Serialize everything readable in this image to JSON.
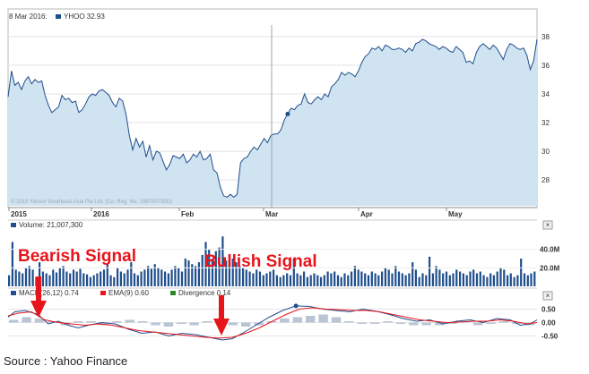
{
  "chart_data": [
    {
      "type": "area",
      "header": {
        "date": "8 Mar 2016:",
        "series_label": "YHOO 32.93"
      },
      "watermark": "© 2015 Yahoo! Southeast Asia Pte Ltd. (Co. Reg. No. 199700735D)",
      "x_ticks": [
        "2015",
        "2016",
        "Feb",
        "Mar",
        "Apr",
        "May"
      ],
      "y_ticks": [
        28,
        30,
        32,
        34,
        36,
        38
      ],
      "ylim": [
        26.2,
        38.8
      ],
      "series_color": "#1f4e8c",
      "fill_color": "#cfe3f1",
      "values": [
        33.8,
        35.6,
        34.6,
        34.8,
        34.3,
        34.9,
        35.2,
        34.7,
        35.0,
        34.8,
        34.9,
        33.9,
        33.2,
        32.7,
        32.9,
        33.1,
        33.9,
        33.6,
        33.7,
        33.4,
        33.5,
        32.7,
        32.9,
        33.3,
        33.8,
        34.0,
        33.9,
        34.2,
        34.3,
        34.1,
        33.9,
        33.4,
        33.1,
        33.7,
        33.5,
        32.6,
        31.1,
        30.1,
        30.9,
        30.3,
        30.7,
        29.6,
        30.4,
        29.4,
        30.0,
        29.9,
        29.3,
        28.7,
        29.1,
        29.7,
        29.6,
        29.5,
        29.8,
        29.2,
        29.4,
        29.8,
        29.6,
        30.0,
        29.4,
        29.5,
        29.8,
        28.7,
        28.5,
        27.5,
        26.9,
        26.8,
        27.0,
        26.8,
        27.0,
        29.2,
        29.5,
        29.6,
        30.0,
        30.3,
        30.1,
        30.5,
        30.9,
        30.6,
        31.1,
        31.2,
        31.2,
        31.5,
        32.2,
        32.6,
        33.0,
        32.9,
        33.2,
        33.3,
        34.0,
        33.4,
        33.3,
        33.6,
        33.8,
        33.6,
        34.0,
        33.8,
        34.5,
        34.7,
        35.0,
        35.5,
        35.3,
        35.5,
        35.4,
        35.2,
        35.6,
        36.2,
        36.6,
        36.8,
        37.2,
        37.1,
        37.3,
        37.0,
        37.4,
        37.3,
        37.1,
        37.1,
        37.2,
        37.1,
        36.9,
        37.2,
        37.0,
        37.5,
        37.6,
        37.8,
        37.7,
        37.5,
        37.4,
        37.3,
        37.1,
        37.3,
        37.2,
        37.0,
        36.9,
        37.3,
        37.1,
        36.9,
        36.2,
        36.3,
        36.1,
        36.9,
        37.3,
        37.5,
        37.3,
        37.1,
        37.4,
        37.2,
        36.8,
        36.4,
        37.1,
        37.5,
        37.4,
        37.2,
        37.1,
        37.2,
        36.7,
        35.7,
        36.3,
        37.8
      ]
    },
    {
      "type": "bar",
      "legend": "Volume: 21,007,300",
      "y_ticks": [
        "20.0M",
        "40.0M"
      ],
      "ylim": [
        0,
        60
      ],
      "color": "#1f4e8c",
      "values": [
        12,
        48,
        18,
        16,
        14,
        20,
        22,
        18,
        10,
        26,
        16,
        14,
        12,
        18,
        15,
        20,
        22,
        16,
        14,
        18,
        16,
        19,
        14,
        13,
        10,
        12,
        14,
        16,
        18,
        24,
        12,
        10,
        20,
        16,
        14,
        18,
        26,
        14,
        12,
        16,
        18,
        22,
        19,
        24,
        20,
        18,
        16,
        14,
        18,
        22,
        20,
        16,
        30,
        28,
        24,
        22,
        26,
        34,
        48,
        40,
        30,
        38,
        42,
        54,
        28,
        24,
        30,
        26,
        22,
        20,
        18,
        16,
        14,
        18,
        16,
        12,
        14,
        16,
        18,
        12,
        10,
        12,
        14,
        12,
        30,
        14,
        12,
        16,
        10,
        12,
        14,
        12,
        10,
        12,
        16,
        14,
        16,
        12,
        10,
        14,
        12,
        16,
        22,
        18,
        16,
        14,
        12,
        16,
        14,
        12,
        16,
        20,
        18,
        14,
        22,
        16,
        14,
        12,
        14,
        26,
        18,
        10,
        14,
        12,
        32,
        14,
        22,
        18,
        14,
        16,
        12,
        14,
        18,
        16,
        14,
        12,
        16,
        18,
        14,
        16,
        12,
        10,
        14,
        12,
        16,
        20,
        18,
        12,
        14,
        10,
        12,
        30,
        14,
        12,
        14,
        16
      ]
    },
    {
      "type": "line",
      "legend": [
        {
          "label": "MACD(26,12) 0.74",
          "color": "#1f4e8c",
          "swatch": "#1f4e8c"
        },
        {
          "label": "EMA(9) 0.60",
          "color": "#e8141b",
          "swatch": "#e8141b"
        },
        {
          "label": "Divergence 0.14",
          "color": "#2a8a2a",
          "swatch": "#2a8a2a"
        }
      ],
      "y_ticks": [
        0.5,
        0.0,
        -0.5
      ],
      "y_tick_labels": [
        "0.50",
        "0.00",
        "-0.50"
      ],
      "ylim": [
        -0.75,
        0.75
      ],
      "macd_points": [
        [
          0,
          0.2
        ],
        [
          2,
          0.4
        ],
        [
          5,
          0.45
        ],
        [
          9,
          0.3
        ],
        [
          12,
          -0.05
        ],
        [
          15,
          0.05
        ],
        [
          18,
          -0.1
        ],
        [
          21,
          -0.2
        ],
        [
          24,
          -0.1
        ],
        [
          28,
          0.0
        ],
        [
          32,
          -0.05
        ],
        [
          36,
          -0.25
        ],
        [
          40,
          -0.4
        ],
        [
          44,
          -0.35
        ],
        [
          48,
          -0.5
        ],
        [
          52,
          -0.4
        ],
        [
          56,
          -0.45
        ],
        [
          60,
          -0.55
        ],
        [
          64,
          -0.65
        ],
        [
          67,
          -0.6
        ],
        [
          70,
          -0.4
        ],
        [
          74,
          -0.1
        ],
        [
          78,
          0.2
        ],
        [
          82,
          0.45
        ],
        [
          86,
          0.62
        ],
        [
          90,
          0.6
        ],
        [
          94,
          0.5
        ],
        [
          98,
          0.45
        ],
        [
          102,
          0.4
        ],
        [
          106,
          0.5
        ],
        [
          110,
          0.42
        ],
        [
          114,
          0.3
        ],
        [
          118,
          0.15
        ],
        [
          122,
          0.05
        ],
        [
          126,
          0.1
        ],
        [
          130,
          -0.05
        ],
        [
          134,
          0.05
        ],
        [
          138,
          0.1
        ],
        [
          142,
          0.0
        ],
        [
          146,
          0.15
        ],
        [
          150,
          0.1
        ],
        [
          153,
          -0.1
        ],
        [
          156,
          -0.05
        ],
        [
          158,
          0.1
        ]
      ],
      "ema_points": [
        [
          0,
          0.25
        ],
        [
          3,
          0.35
        ],
        [
          7,
          0.4
        ],
        [
          11,
          0.1
        ],
        [
          15,
          0.0
        ],
        [
          19,
          -0.05
        ],
        [
          23,
          -0.1
        ],
        [
          27,
          -0.05
        ],
        [
          31,
          -0.1
        ],
        [
          35,
          -0.2
        ],
        [
          39,
          -0.3
        ],
        [
          43,
          -0.35
        ],
        [
          47,
          -0.4
        ],
        [
          51,
          -0.45
        ],
        [
          55,
          -0.5
        ],
        [
          59,
          -0.55
        ],
        [
          63,
          -0.58
        ],
        [
          67,
          -0.55
        ],
        [
          71,
          -0.4
        ],
        [
          75,
          -0.2
        ],
        [
          79,
          0.05
        ],
        [
          83,
          0.3
        ],
        [
          87,
          0.5
        ],
        [
          91,
          0.55
        ],
        [
          95,
          0.5
        ],
        [
          99,
          0.48
        ],
        [
          103,
          0.45
        ],
        [
          107,
          0.45
        ],
        [
          111,
          0.4
        ],
        [
          115,
          0.3
        ],
        [
          119,
          0.2
        ],
        [
          123,
          0.1
        ],
        [
          127,
          0.05
        ],
        [
          131,
          0.0
        ],
        [
          135,
          0.02
        ],
        [
          139,
          0.05
        ],
        [
          143,
          0.05
        ],
        [
          147,
          0.1
        ],
        [
          151,
          0.05
        ],
        [
          155,
          -0.05
        ],
        [
          158,
          0.0
        ]
      ],
      "divergence_bars": [
        0.1,
        0.2,
        0.15,
        0.05,
        -0.1,
        0.05,
        0.05,
        -0.1,
        0.05,
        0.1,
        0.05,
        -0.1,
        -0.15,
        -0.05,
        -0.1,
        0.05,
        -0.05,
        -0.1,
        -0.15,
        -0.1,
        0.05,
        0.15,
        0.2,
        0.25,
        0.3,
        0.2,
        0.05,
        -0.05,
        -0.05,
        0.05,
        -0.05,
        -0.1,
        -0.1,
        -0.1,
        -0.05,
        0.05,
        -0.1,
        -0.05,
        0.05,
        -0.05,
        -0.1
      ]
    }
  ],
  "annotations": {
    "bearish": "Bearish Signal",
    "bullish": "Bullish Signal"
  },
  "source": "Source : Yahoo Finance",
  "close_button": "×"
}
